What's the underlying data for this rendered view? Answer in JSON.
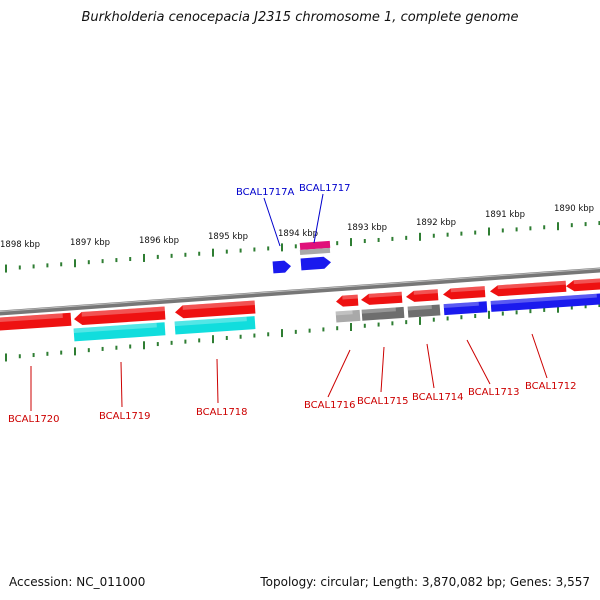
{
  "title": "Burkholderia cenocepacia J2315 chromosome 1, complete genome",
  "footer": {
    "accession": "Accession: NC_011000",
    "summary": "Topology: circular; Length: 3,870,082 bp; Genes: 3,557"
  },
  "colors": {
    "backbone": "#777777",
    "tick": "#2e7d32",
    "red": "#ee1111",
    "cyan": "#11dddd",
    "blue": "#1a1aee",
    "magenta": "#e0107a",
    "dark_gray": "#6e6e6e",
    "light_gray": "#a9a9a9",
    "label_red": "#cc0000",
    "label_blue": "#0000cc"
  },
  "scale_labels": [
    "1898 kbp",
    "1897 kbp",
    "1896 kbp",
    "1895 kbp",
    "1894 kbp",
    "1893 kbp",
    "1892 kbp",
    "1891 kbp",
    "1890 kbp"
  ],
  "gene_labels": [
    {
      "name": "BCAL1720",
      "color": "label_red"
    },
    {
      "name": "BCAL1719",
      "color": "label_red"
    },
    {
      "name": "BCAL1718",
      "color": "label_red"
    },
    {
      "name": "BCAL1716",
      "color": "label_red"
    },
    {
      "name": "BCAL1715",
      "color": "label_red"
    },
    {
      "name": "BCAL1714",
      "color": "label_red"
    },
    {
      "name": "BCAL1713",
      "color": "label_red"
    },
    {
      "name": "BCAL1712",
      "color": "label_red"
    },
    {
      "name": "BCAL1717A",
      "color": "label_blue"
    },
    {
      "name": "BCAL1717",
      "color": "label_blue"
    }
  ]
}
